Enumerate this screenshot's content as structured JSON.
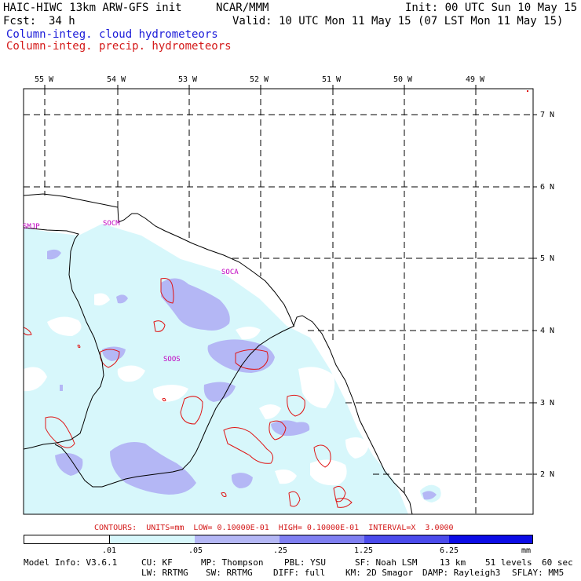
{
  "header": {
    "model": "HAIC-HIWC 13km ARW-GFS init",
    "org": "NCAR/MMM",
    "init": "Init: 00 UTC Sun 10 May 15",
    "fcst_label": "Fcst:",
    "fcst_value": "34 h",
    "valid": "Valid: 10 UTC Mon 11 May 15 (07 LST Mon 11 May 15)",
    "field1": "Column-integ. cloud hydrometeors",
    "field2": "Column-integ. precip. hydrometeors"
  },
  "map": {
    "lon_labels": [
      "55 W",
      "54 W",
      "53 W",
      "52 W",
      "51 W",
      "50 W",
      "49 W"
    ],
    "lat_labels": [
      "7 N",
      "6 N",
      "5 N",
      "4 N",
      "3 N",
      "2 N"
    ],
    "stations": [
      "SMJP",
      "SOCM",
      "SOCA",
      "SOOS"
    ]
  },
  "contour_info": "CONTOURS:  UNITS=mm  LOW= 0.10000E-01  HIGH= 0.10000E-01  INTERVAL=X  3.0000",
  "colorbar": {
    "labels": [
      ".01",
      ".05",
      ".25",
      "1.25",
      "6.25"
    ],
    "units": "mm",
    "colors": [
      "#ffffff",
      "#d7f7fb",
      "#b4b7f5",
      "#7f7ff1",
      "#4b4bec",
      "#0c0ce6"
    ]
  },
  "footer": {
    "line1": [
      "Model Info: V3.6.1",
      "CU: KF",
      "MP: Thompson",
      "PBL: YSU",
      "SF: Noah LSM",
      "13 km",
      "51 levels",
      "60 sec"
    ],
    "line2": [
      "LW: RRTMG",
      "SW: RRTMG",
      "DIFF: full",
      "KM: 2D Smagor",
      "DAMP: Rayleigh3",
      "SFLAY: MM5"
    ]
  },
  "legend_colors": {
    "cloud": "#1a1ad8",
    "precip": "#d41a1a",
    "station": "#c000c0"
  }
}
